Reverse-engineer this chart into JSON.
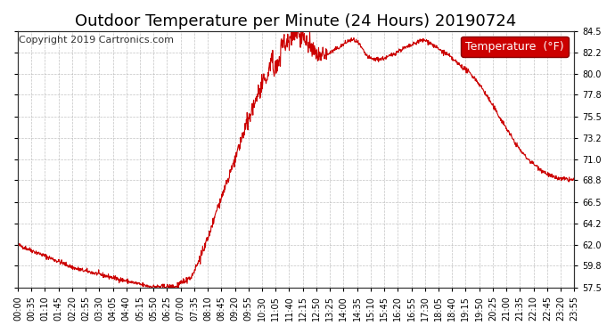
{
  "title": "Outdoor Temperature per Minute (24 Hours) 20190724",
  "copyright": "Copyright 2019 Cartronics.com",
  "legend_label": "Temperature  (°F)",
  "legend_bg": "#cc0000",
  "legend_text_color": "#ffffff",
  "line_color": "#cc0000",
  "background_color": "#ffffff",
  "grid_color": "#aaaaaa",
  "ylim": [
    57.5,
    84.5
  ],
  "yticks": [
    57.5,
    59.8,
    62.0,
    64.2,
    66.5,
    68.8,
    71.0,
    73.2,
    75.5,
    77.8,
    80.0,
    82.2,
    84.5
  ],
  "xtick_labels": [
    "00:00",
    "00:35",
    "01:10",
    "01:45",
    "02:20",
    "02:55",
    "03:30",
    "04:05",
    "04:40",
    "05:15",
    "05:50",
    "06:25",
    "07:00",
    "07:35",
    "08:10",
    "08:45",
    "09:20",
    "09:55",
    "10:30",
    "11:05",
    "11:40",
    "12:15",
    "12:50",
    "13:25",
    "14:00",
    "14:35",
    "15:10",
    "15:45",
    "16:20",
    "16:55",
    "17:30",
    "18:05",
    "18:40",
    "19:15",
    "19:50",
    "20:25",
    "21:00",
    "21:35",
    "22:10",
    "22:45",
    "23:20",
    "23:55"
  ],
  "title_fontsize": 13,
  "copyright_fontsize": 8,
  "tick_fontsize": 7,
  "legend_fontsize": 9
}
